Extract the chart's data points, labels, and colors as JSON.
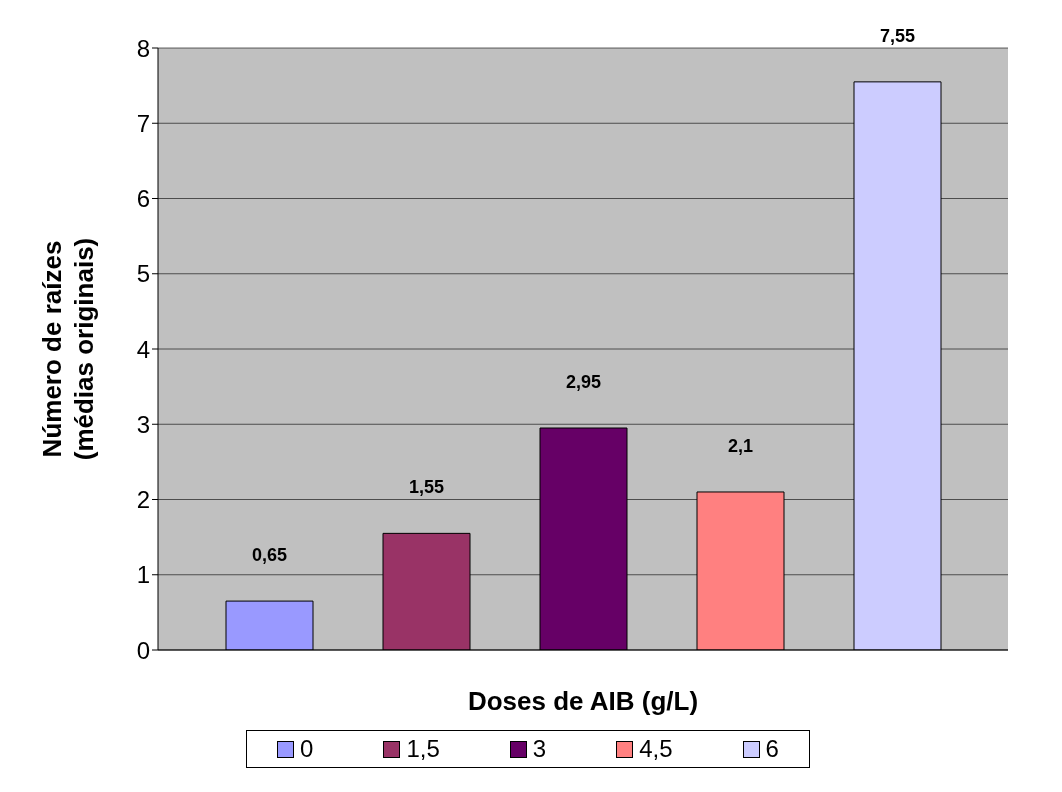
{
  "chart_data": {
    "type": "bar",
    "xlabel": "Doses de AIB (g/L)",
    "ylabel": "Número de raízes (médias originais)",
    "categories": [
      null
    ],
    "series": [
      {
        "name": "0",
        "color": "#9999ff",
        "values": [
          0.65
        ],
        "value_labels": [
          "0,65"
        ]
      },
      {
        "name": "1,5",
        "color": "#993366",
        "values": [
          1.55
        ],
        "value_labels": [
          "1,55"
        ]
      },
      {
        "name": "3",
        "color": "#660066",
        "values": [
          2.95
        ],
        "value_labels": [
          "2,95"
        ]
      },
      {
        "name": "4,5",
        "color": "#ff8080",
        "values": [
          2.1
        ],
        "value_labels": [
          "2,1"
        ]
      },
      {
        "name": "6",
        "color": "#ccccff",
        "values": [
          7.55
        ],
        "value_labels": [
          "7,55"
        ]
      }
    ],
    "ylim": [
      0,
      8
    ],
    "yticks": [
      0,
      1,
      2,
      3,
      4,
      5,
      6,
      7,
      8
    ],
    "grid": "y",
    "legend": "bottom"
  }
}
